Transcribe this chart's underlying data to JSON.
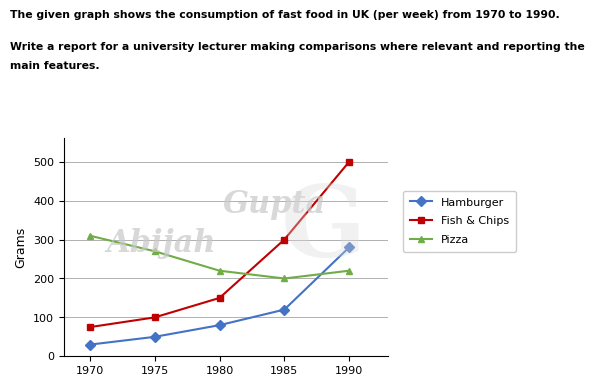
{
  "title_line1": "The given graph shows the consumption of fast food in UK (per week) from 1970 to 1990.",
  "title_line2_a": "Write a report for a university lecturer making comparisons where relevant and reporting the",
  "title_line2_b": "main features.",
  "years": [
    1970,
    1975,
    1980,
    1985,
    1990
  ],
  "hamburger": [
    30,
    50,
    80,
    120,
    280
  ],
  "fish_chips": [
    75,
    100,
    150,
    300,
    500
  ],
  "pizza": [
    310,
    270,
    220,
    200,
    220
  ],
  "hamburger_color": "#4472C4",
  "fish_chips_color": "#C00000",
  "pizza_color": "#70AD47",
  "ylabel": "Grams",
  "ylim": [
    0,
    560
  ],
  "yticks": [
    0,
    100,
    200,
    300,
    400,
    500
  ],
  "xlim": [
    1968,
    1993
  ],
  "xticks": [
    1970,
    1975,
    1980,
    1985,
    1990
  ],
  "legend_labels": [
    "Hamburger",
    "Fish & Chips",
    "Pizza"
  ],
  "watermark_part1": "Abijah",
  "watermark_part2": "Gupta",
  "background_color": "#ffffff",
  "grid_color": "#b0b0b0"
}
